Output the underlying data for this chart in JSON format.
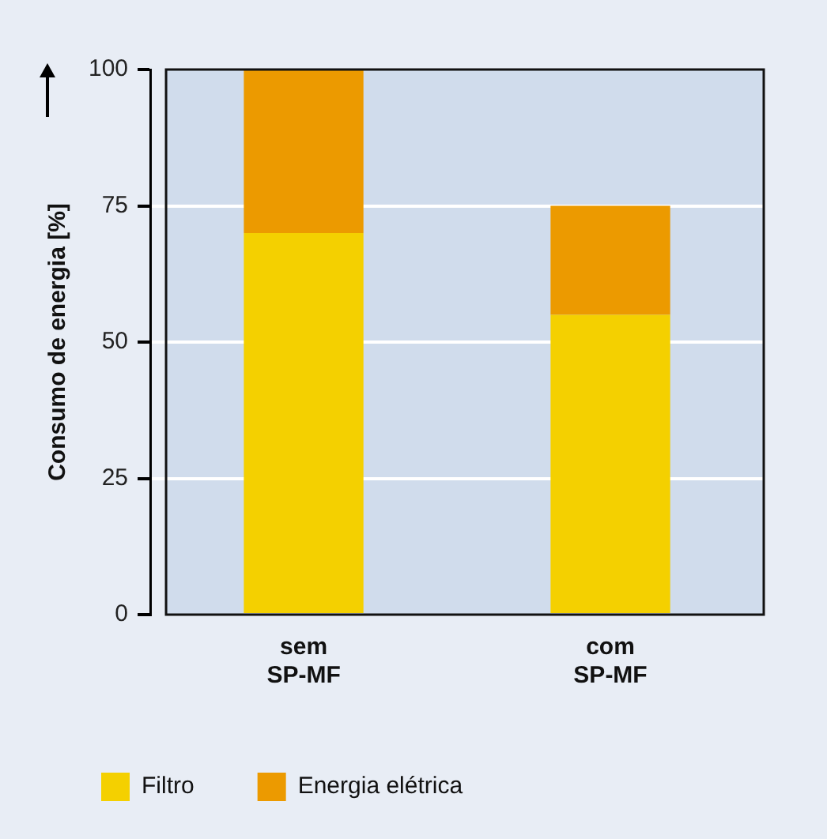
{
  "chart_data": {
    "type": "bar",
    "ylabel": "Consumo de energia [%]",
    "categories": [
      "sem SP-MF",
      "com SP-MF"
    ],
    "series": [
      {
        "name": "Filtro",
        "color": "#f4d000",
        "values": [
          70,
          55
        ]
      },
      {
        "name": "Energia elétrica",
        "color": "#ec9a00",
        "values": [
          30,
          20
        ]
      }
    ],
    "stacked": true,
    "ylim": [
      0,
      100
    ],
    "yticks": [
      0,
      25,
      50,
      75,
      100
    ],
    "grid": "y",
    "legend": "bottom left"
  }
}
